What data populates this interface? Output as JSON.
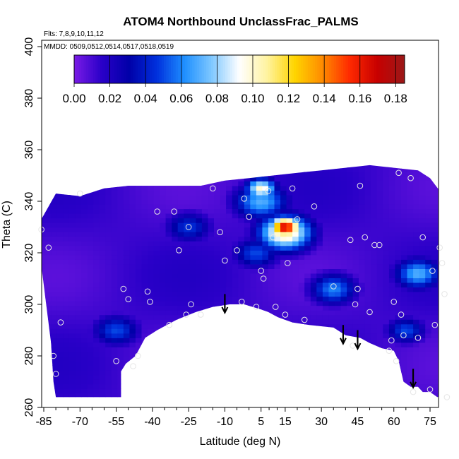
{
  "chart_data": {
    "type": "heatmap",
    "title": "ATOM4 Northbound UnclassFrac_PALMS",
    "subtitle_flights": "Flts: 7,8,9,10,11,12",
    "subtitle_dates": "MMDD: 0509,0512,0514,0517,0518,0519",
    "xlabel": "Latitude (deg N)",
    "ylabel": "Theta (C)",
    "xlim": [
      -87,
      83
    ],
    "ylim": [
      260,
      405
    ],
    "x_ticks": [
      -85,
      -70,
      -55,
      -40,
      -25,
      -10,
      5,
      15,
      30,
      45,
      60,
      75
    ],
    "y_ticks": [
      260,
      280,
      300,
      320,
      340,
      360,
      380,
      400
    ],
    "colorbar": {
      "min": 0.0,
      "max": 0.185,
      "ticks": [
        0.0,
        0.02,
        0.04,
        0.06,
        0.08,
        0.1,
        0.12,
        0.14,
        0.16,
        0.18
      ],
      "tick_labels": [
        "0.00",
        "0.02",
        "0.04",
        "0.06",
        "0.08",
        "0.10",
        "0.12",
        "0.14",
        "0.16",
        "0.18"
      ],
      "colors": [
        "#7a1be6",
        "#2a00c8",
        "#0000a8",
        "#0030dd",
        "#1e8fff",
        "#7fc8ff",
        "#ffffff",
        "#fff3a0",
        "#ffd500",
        "#ff8c00",
        "#ff2a00",
        "#c80000",
        "#9a1818"
      ]
    },
    "envelope": [
      [
        -87,
        329
      ],
      [
        -86,
        333
      ],
      [
        -80,
        343
      ],
      [
        -70,
        342
      ],
      [
        -60,
        345
      ],
      [
        -50,
        346
      ],
      [
        -40,
        346
      ],
      [
        -30,
        346
      ],
      [
        -20,
        346
      ],
      [
        -10,
        348
      ],
      [
        0,
        349
      ],
      [
        10,
        350
      ],
      [
        20,
        351
      ],
      [
        30,
        352
      ],
      [
        40,
        353
      ],
      [
        50,
        354
      ],
      [
        60,
        353
      ],
      [
        70,
        352
      ],
      [
        75,
        349
      ],
      [
        79,
        344
      ],
      [
        82,
        335
      ],
      [
        82,
        320
      ],
      [
        82,
        300
      ],
      [
        81,
        290
      ],
      [
        80,
        278
      ],
      [
        80,
        265
      ],
      [
        78,
        264
      ],
      [
        75,
        266
      ],
      [
        72,
        266
      ],
      [
        70,
        268
      ],
      [
        67,
        268
      ],
      [
        64,
        270
      ],
      [
        62,
        278
      ],
      [
        60,
        282
      ],
      [
        55,
        283
      ],
      [
        50,
        285
      ],
      [
        46,
        287
      ],
      [
        40,
        288
      ],
      [
        35,
        291
      ],
      [
        25,
        292
      ],
      [
        18,
        293
      ],
      [
        12,
        295
      ],
      [
        8,
        297
      ],
      [
        5,
        298
      ],
      [
        -2,
        300
      ],
      [
        -8,
        300
      ],
      [
        -15,
        299
      ],
      [
        -22,
        297
      ],
      [
        -30,
        294
      ],
      [
        -38,
        290
      ],
      [
        -43,
        287
      ],
      [
        -47,
        280
      ],
      [
        -51,
        277
      ],
      [
        -53,
        274
      ],
      [
        -53,
        264
      ],
      [
        -80,
        264
      ],
      [
        -81,
        270
      ],
      [
        -82,
        285
      ],
      [
        -84,
        300
      ],
      [
        -86,
        315
      ],
      [
        -87,
        321
      ]
    ],
    "features": [
      {
        "name": "ridge-south",
        "x": -55,
        "y": 290,
        "value": 0.05,
        "radius": 6
      },
      {
        "name": "ridge-mid-low",
        "x": -25,
        "y": 330,
        "value": 0.045,
        "radius": 6
      },
      {
        "name": "band-north-upper",
        "x": 5,
        "y": 340,
        "value": 0.07,
        "radius": 7
      },
      {
        "name": "band-north-mid",
        "x": 3,
        "y": 320,
        "value": 0.05,
        "radius": 6
      },
      {
        "name": "peak",
        "x": 15,
        "y": 330,
        "value": 0.17,
        "radius": 4
      },
      {
        "name": "peak-halo",
        "x": 15,
        "y": 328,
        "value": 0.11,
        "radius": 7
      },
      {
        "name": "top-band",
        "x": 5,
        "y": 345,
        "value": 0.1,
        "radius": 4
      },
      {
        "name": "sub-band",
        "x": 35,
        "y": 306,
        "value": 0.06,
        "radius": 6
      },
      {
        "name": "right-patch",
        "x": 70,
        "y": 312,
        "value": 0.07,
        "radius": 6
      },
      {
        "name": "right-lower",
        "x": 65,
        "y": 290,
        "value": 0.05,
        "radius": 5
      }
    ],
    "observations": [
      {
        "x": -86,
        "y": 329
      },
      {
        "x": -83,
        "y": 322
      },
      {
        "x": -81,
        "y": 280
      },
      {
        "x": -80,
        "y": 273
      },
      {
        "x": -78,
        "y": 293
      },
      {
        "x": -70,
        "y": 343
      },
      {
        "x": -55,
        "y": 278
      },
      {
        "x": -52,
        "y": 306
      },
      {
        "x": -50,
        "y": 302
      },
      {
        "x": -48,
        "y": 276
      },
      {
        "x": -46,
        "y": 280
      },
      {
        "x": -42,
        "y": 305
      },
      {
        "x": -41,
        "y": 301
      },
      {
        "x": -38,
        "y": 336
      },
      {
        "x": -33,
        "y": 292
      },
      {
        "x": -31,
        "y": 336
      },
      {
        "x": -29,
        "y": 321
      },
      {
        "x": -26,
        "y": 296
      },
      {
        "x": -25,
        "y": 330
      },
      {
        "x": -24,
        "y": 300
      },
      {
        "x": -20,
        "y": 296
      },
      {
        "x": -15,
        "y": 345
      },
      {
        "x": -12,
        "y": 328
      },
      {
        "x": -10,
        "y": 317
      },
      {
        "x": -5,
        "y": 321
      },
      {
        "x": -3,
        "y": 301
      },
      {
        "x": -2,
        "y": 341
      },
      {
        "x": 0,
        "y": 334
      },
      {
        "x": 3,
        "y": 299
      },
      {
        "x": 5,
        "y": 313
      },
      {
        "x": 6,
        "y": 310
      },
      {
        "x": 8,
        "y": 344
      },
      {
        "x": 10,
        "y": 326
      },
      {
        "x": 11,
        "y": 299
      },
      {
        "x": 15,
        "y": 296
      },
      {
        "x": 16,
        "y": 316
      },
      {
        "x": 18,
        "y": 345
      },
      {
        "x": 20,
        "y": 333
      },
      {
        "x": 23,
        "y": 294
      },
      {
        "x": 27,
        "y": 338
      },
      {
        "x": 35,
        "y": 307
      },
      {
        "x": 42,
        "y": 325
      },
      {
        "x": 43,
        "y": 284
      },
      {
        "x": 44,
        "y": 300
      },
      {
        "x": 45,
        "y": 306
      },
      {
        "x": 46,
        "y": 346
      },
      {
        "x": 48,
        "y": 326
      },
      {
        "x": 50,
        "y": 297
      },
      {
        "x": 52,
        "y": 323
      },
      {
        "x": 54,
        "y": 323
      },
      {
        "x": 58,
        "y": 282
      },
      {
        "x": 59,
        "y": 286
      },
      {
        "x": 60,
        "y": 301
      },
      {
        "x": 61,
        "y": 278
      },
      {
        "x": 62,
        "y": 351
      },
      {
        "x": 63,
        "y": 296
      },
      {
        "x": 64,
        "y": 288
      },
      {
        "x": 67,
        "y": 349
      },
      {
        "x": 68,
        "y": 266
      },
      {
        "x": 70,
        "y": 287
      },
      {
        "x": 72,
        "y": 326
      },
      {
        "x": 75,
        "y": 267
      },
      {
        "x": 76,
        "y": 313
      },
      {
        "x": 77,
        "y": 292
      },
      {
        "x": 79,
        "y": 322
      },
      {
        "x": 80,
        "y": 316
      },
      {
        "x": 81,
        "y": 304
      },
      {
        "x": 82,
        "y": 264
      }
    ],
    "arrows": [
      {
        "x": -10,
        "y_start": 304,
        "y_end": 297
      },
      {
        "x": 39,
        "y_start": 292,
        "y_end": 285
      },
      {
        "x": 45,
        "y_start": 290,
        "y_end": 283
      },
      {
        "x": 68,
        "y_start": 275,
        "y_end": 268
      }
    ]
  }
}
